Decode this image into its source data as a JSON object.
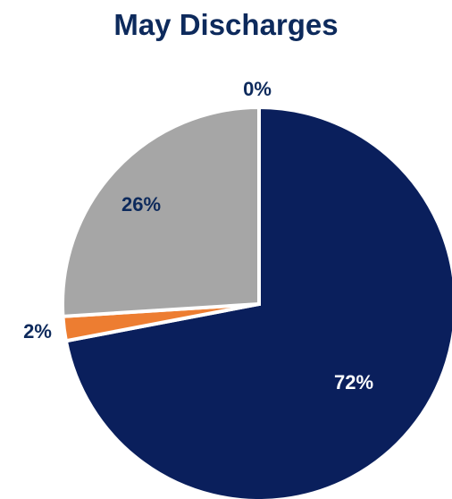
{
  "chart_data": {
    "type": "pie",
    "title": "May Discharges",
    "slices": [
      {
        "value": 72,
        "label": "72%",
        "color": "#0a1f5c",
        "label_color": "#ffffff"
      },
      {
        "value": 2,
        "label": "2%",
        "color": "#ed7d31",
        "label_color": "#0d2a5c"
      },
      {
        "value": 26,
        "label": "26%",
        "color": "#a6a6a6",
        "label_color": "#0d2a5c"
      },
      {
        "value": 0,
        "label": "0%",
        "color": "#4472c4",
        "label_color": "#0d2a5c"
      }
    ],
    "start_angle_deg": 0,
    "direction": "clockwise",
    "legend": "none"
  }
}
